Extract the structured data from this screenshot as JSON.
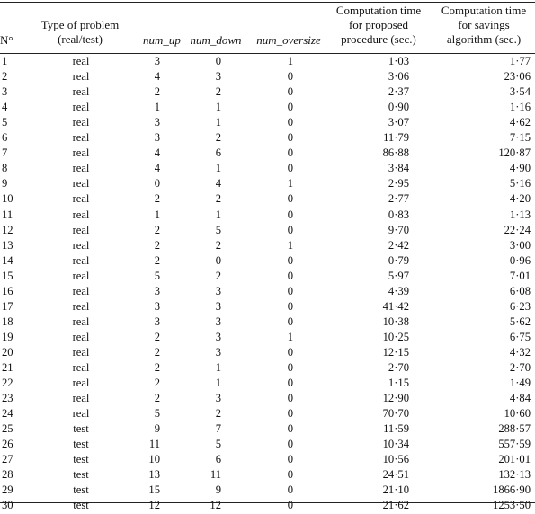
{
  "table": {
    "headers": {
      "n": "N°",
      "type": [
        "Type of problem",
        "(real/test)"
      ],
      "num_up": "num_up",
      "num_down": "num_down",
      "num_oversize": "num_oversize",
      "proposed": [
        "Computation time",
        "for proposed",
        "procedure (sec.)"
      ],
      "savings": [
        "Computation time",
        "for savings",
        "algorithm (sec.)"
      ]
    },
    "rows": [
      [
        "1",
        "real",
        "3",
        "0",
        "1",
        "1·03",
        "1·77"
      ],
      [
        "2",
        "real",
        "4",
        "3",
        "0",
        "3·06",
        "23·06"
      ],
      [
        "3",
        "real",
        "2",
        "2",
        "0",
        "2·37",
        "3·54"
      ],
      [
        "4",
        "real",
        "1",
        "1",
        "0",
        "0·90",
        "1·16"
      ],
      [
        "5",
        "real",
        "3",
        "1",
        "0",
        "3·07",
        "4·62"
      ],
      [
        "6",
        "real",
        "3",
        "2",
        "0",
        "11·79",
        "7·15"
      ],
      [
        "7",
        "real",
        "4",
        "6",
        "0",
        "86·88",
        "120·87"
      ],
      [
        "8",
        "real",
        "4",
        "1",
        "0",
        "3·84",
        "4·90"
      ],
      [
        "9",
        "real",
        "0",
        "4",
        "1",
        "2·95",
        "5·16"
      ],
      [
        "10",
        "real",
        "2",
        "2",
        "0",
        "2·77",
        "4·20"
      ],
      [
        "11",
        "real",
        "1",
        "1",
        "0",
        "0·83",
        "1·13"
      ],
      [
        "12",
        "real",
        "2",
        "5",
        "0",
        "9·70",
        "22·24"
      ],
      [
        "13",
        "real",
        "2",
        "2",
        "1",
        "2·42",
        "3·00"
      ],
      [
        "14",
        "real",
        "2",
        "0",
        "0",
        "0·79",
        "0·96"
      ],
      [
        "15",
        "real",
        "5",
        "2",
        "0",
        "5·97",
        "7·01"
      ],
      [
        "16",
        "real",
        "3",
        "3",
        "0",
        "4·39",
        "6·08"
      ],
      [
        "17",
        "real",
        "3",
        "3",
        "0",
        "41·42",
        "6·23"
      ],
      [
        "18",
        "real",
        "3",
        "3",
        "0",
        "10·38",
        "5·62"
      ],
      [
        "19",
        "real",
        "2",
        "3",
        "1",
        "10·25",
        "6·75"
      ],
      [
        "20",
        "real",
        "2",
        "3",
        "0",
        "12·15",
        "4·32"
      ],
      [
        "21",
        "real",
        "2",
        "1",
        "0",
        "2·70",
        "2·70"
      ],
      [
        "22",
        "real",
        "2",
        "1",
        "0",
        "1·15",
        "1·49"
      ],
      [
        "23",
        "real",
        "2",
        "3",
        "0",
        "12·90",
        "4·84"
      ],
      [
        "24",
        "real",
        "5",
        "2",
        "0",
        "70·70",
        "10·60"
      ],
      [
        "25",
        "test",
        "9",
        "7",
        "0",
        "11·59",
        "288·57"
      ],
      [
        "26",
        "test",
        "11",
        "5",
        "0",
        "10·34",
        "557·59"
      ],
      [
        "27",
        "test",
        "10",
        "6",
        "0",
        "10·56",
        "201·01"
      ],
      [
        "28",
        "test",
        "13",
        "11",
        "0",
        "24·51",
        "132·13"
      ],
      [
        "29",
        "test",
        "15",
        "9",
        "0",
        "21·10",
        "1866·90"
      ],
      [
        "30",
        "test",
        "12",
        "12",
        "0",
        "21·62",
        "1253·50"
      ]
    ]
  }
}
